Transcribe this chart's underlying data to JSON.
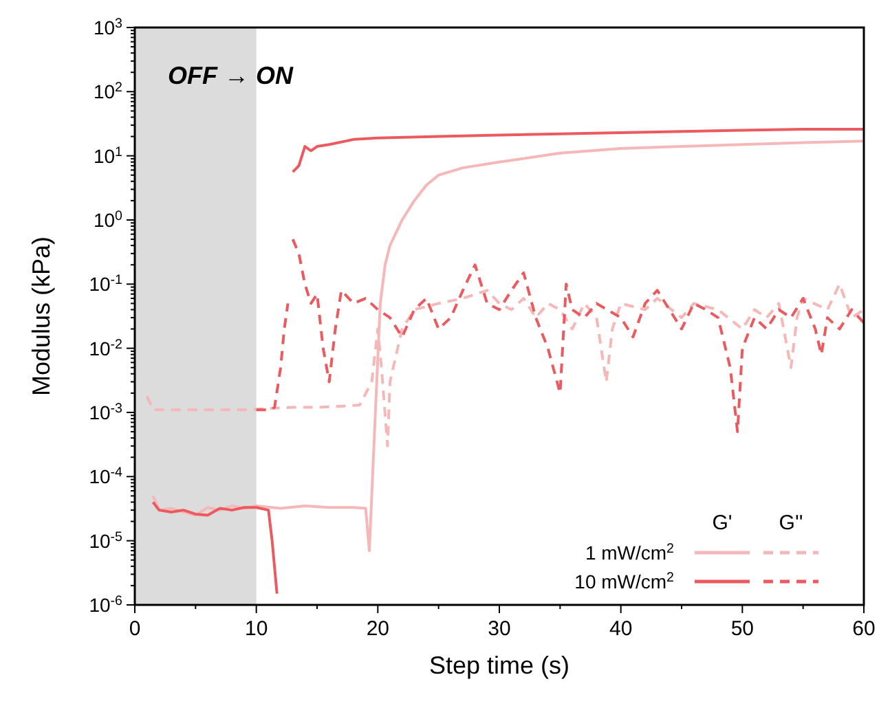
{
  "chart_data": {
    "type": "line",
    "xlabel": "Step time (s)",
    "ylabel": "Modulus (kPa)",
    "log": "y",
    "xlim": [
      0,
      60
    ],
    "xticks": [
      0,
      {
        "value": 5,
        "label": null
      },
      10,
      {
        "value": 15,
        "label": null
      },
      20,
      {
        "value": 25,
        "label": null
      },
      30,
      {
        "value": 35,
        "label": null
      },
      40,
      {
        "value": 45,
        "label": null
      },
      50,
      {
        "value": 55,
        "label": null
      },
      60
    ],
    "ylim": [
      1e-06,
      1000
    ],
    "yticks": [
      {
        "value": 1e-06,
        "label": "10$^{-6}$"
      },
      {
        "value": 1e-05,
        "label": "10$^{-5}$"
      },
      {
        "value": 0.0001,
        "label": "10$^{-4}$"
      },
      {
        "value": 0.001,
        "label": "10$^{-3}$"
      },
      {
        "value": 0.01,
        "label": "10$^{-2}$"
      },
      {
        "value": 0.1,
        "label": "10$^{-1}$"
      },
      {
        "value": 1,
        "label": "10$^{0}$"
      },
      {
        "value": 10,
        "label": "10$^{1}$"
      },
      {
        "value": 100,
        "label": "10$^{2}$"
      },
      {
        "value": 1000,
        "label": "10$^{3}$"
      }
    ],
    "grid": false,
    "legend": "bottom right",
    "bands": [
      {
        "axis": "x",
        "from": 0,
        "to": 10,
        "label": "OFF → ON",
        "color": "#dcdcdc"
      }
    ],
    "annotations": [
      "G'",
      "G''"
    ],
    "series": [
      {
        "name": "1 mW/cm$^{2}$",
        "color": "#f5b7b7",
        "line_style": "solid",
        "x": [
          1.5,
          2,
          3,
          4,
          5,
          6,
          7,
          8,
          9,
          10,
          12,
          14,
          16,
          18,
          19,
          19.3,
          19.8,
          20.2,
          20.6,
          21,
          22,
          23,
          24,
          25,
          27,
          30,
          35,
          40,
          45,
          50,
          55,
          60
        ],
        "values": [
          5e-05,
          3e-05,
          3.2e-05,
          2.8e-05,
          2.5e-05,
          3.3e-05,
          3e-05,
          3.5e-05,
          3.2e-05,
          3.5e-05,
          3.2e-05,
          3.5e-05,
          3.3e-05,
          3.3e-05,
          3.2e-05,
          7e-06,
          0.001,
          0.05,
          0.2,
          0.4,
          1,
          2,
          3.5,
          5,
          6.5,
          8,
          11,
          13,
          14,
          15,
          16,
          17
        ]
      },
      {
        "color": "#f5b7b7",
        "line_style": "dashed",
        "x": [
          1,
          1.5,
          3,
          5,
          7,
          9,
          11,
          13,
          15,
          17,
          18.5,
          19.5,
          20,
          20.3,
          20.8,
          21,
          22,
          23,
          25,
          27,
          29,
          30,
          31,
          32,
          33,
          34,
          35,
          36,
          37,
          38,
          38.8,
          39.3,
          40,
          42,
          43,
          45,
          46,
          48,
          50,
          51,
          52,
          53,
          54,
          54.5,
          55,
          57,
          58,
          59,
          60
        ],
        "values": [
          0.0018,
          0.0011,
          0.0011,
          0.0011,
          0.0011,
          0.0011,
          0.00115,
          0.0012,
          0.0012,
          0.00125,
          0.0013,
          0.003,
          0.02,
          0.005,
          0.0003,
          0.003,
          0.02,
          0.04,
          0.05,
          0.06,
          0.08,
          0.05,
          0.04,
          0.06,
          0.03,
          0.05,
          0.04,
          0.02,
          0.05,
          0.03,
          0.003,
          0.02,
          0.05,
          0.04,
          0.06,
          0.03,
          0.05,
          0.04,
          0.02,
          0.04,
          0.03,
          0.05,
          0.005,
          0.03,
          0.06,
          0.04,
          0.1,
          0.03,
          0.04
        ]
      },
      {
        "name": "10 mW/cm$^{2}$",
        "color": "#eb5a5f",
        "line_style": "solid",
        "x": [
          1.5,
          2,
          3,
          4,
          5,
          6,
          7,
          8,
          9,
          10,
          11,
          11.3,
          11.7,
          12.5,
          13,
          13.5,
          14,
          14.5,
          15,
          16,
          18,
          20,
          25,
          30,
          35,
          40,
          45,
          50,
          55,
          60
        ],
        "values": [
          4e-05,
          3e-05,
          2.8e-05,
          3e-05,
          2.6e-05,
          2.5e-05,
          3.2e-05,
          3e-05,
          3.3e-05,
          3.3e-05,
          3e-05,
          1e-05,
          1.5e-06,
          null,
          5.6,
          7,
          14,
          12,
          14,
          15,
          18,
          19,
          20,
          21,
          22,
          23,
          24,
          25,
          26,
          26
        ]
      },
      {
        "color": "#eb5a5f",
        "line_style": "dashed",
        "x": [
          10,
          11,
          11.5,
          12,
          12.3,
          12.6,
          12.8,
          13,
          13.5,
          14,
          14.5,
          15,
          15.5,
          16,
          16.5,
          17,
          18,
          19,
          20,
          21,
          22,
          23,
          24,
          25,
          26,
          27,
          28,
          29,
          30,
          31,
          32,
          33,
          34,
          35,
          35.5,
          36,
          37,
          38,
          40,
          41,
          42,
          43,
          44,
          45,
          46,
          47,
          48,
          49,
          49.6,
          50,
          51,
          52,
          53,
          54,
          55,
          56,
          56.5,
          57,
          58,
          59,
          60
        ],
        "values": [
          0.0011,
          0.0011,
          0.0012,
          0.005,
          0.02,
          0.05,
          null,
          0.5,
          0.3,
          0.1,
          0.05,
          0.07,
          0.01,
          0.003,
          0.02,
          0.08,
          0.05,
          0.06,
          0.04,
          0.03,
          0.015,
          0.04,
          0.06,
          0.02,
          0.03,
          0.08,
          0.2,
          0.05,
          0.04,
          0.08,
          0.15,
          0.03,
          0.01,
          0.002,
          0.1,
          0.04,
          0.03,
          0.05,
          0.03,
          0.015,
          0.05,
          0.08,
          0.04,
          0.02,
          0.05,
          0.04,
          0.03,
          0.005,
          0.0005,
          0.01,
          0.03,
          0.02,
          0.04,
          0.03,
          0.06,
          0.02,
          0.008,
          0.03,
          0.02,
          0.04,
          0.025
        ]
      }
    ]
  }
}
